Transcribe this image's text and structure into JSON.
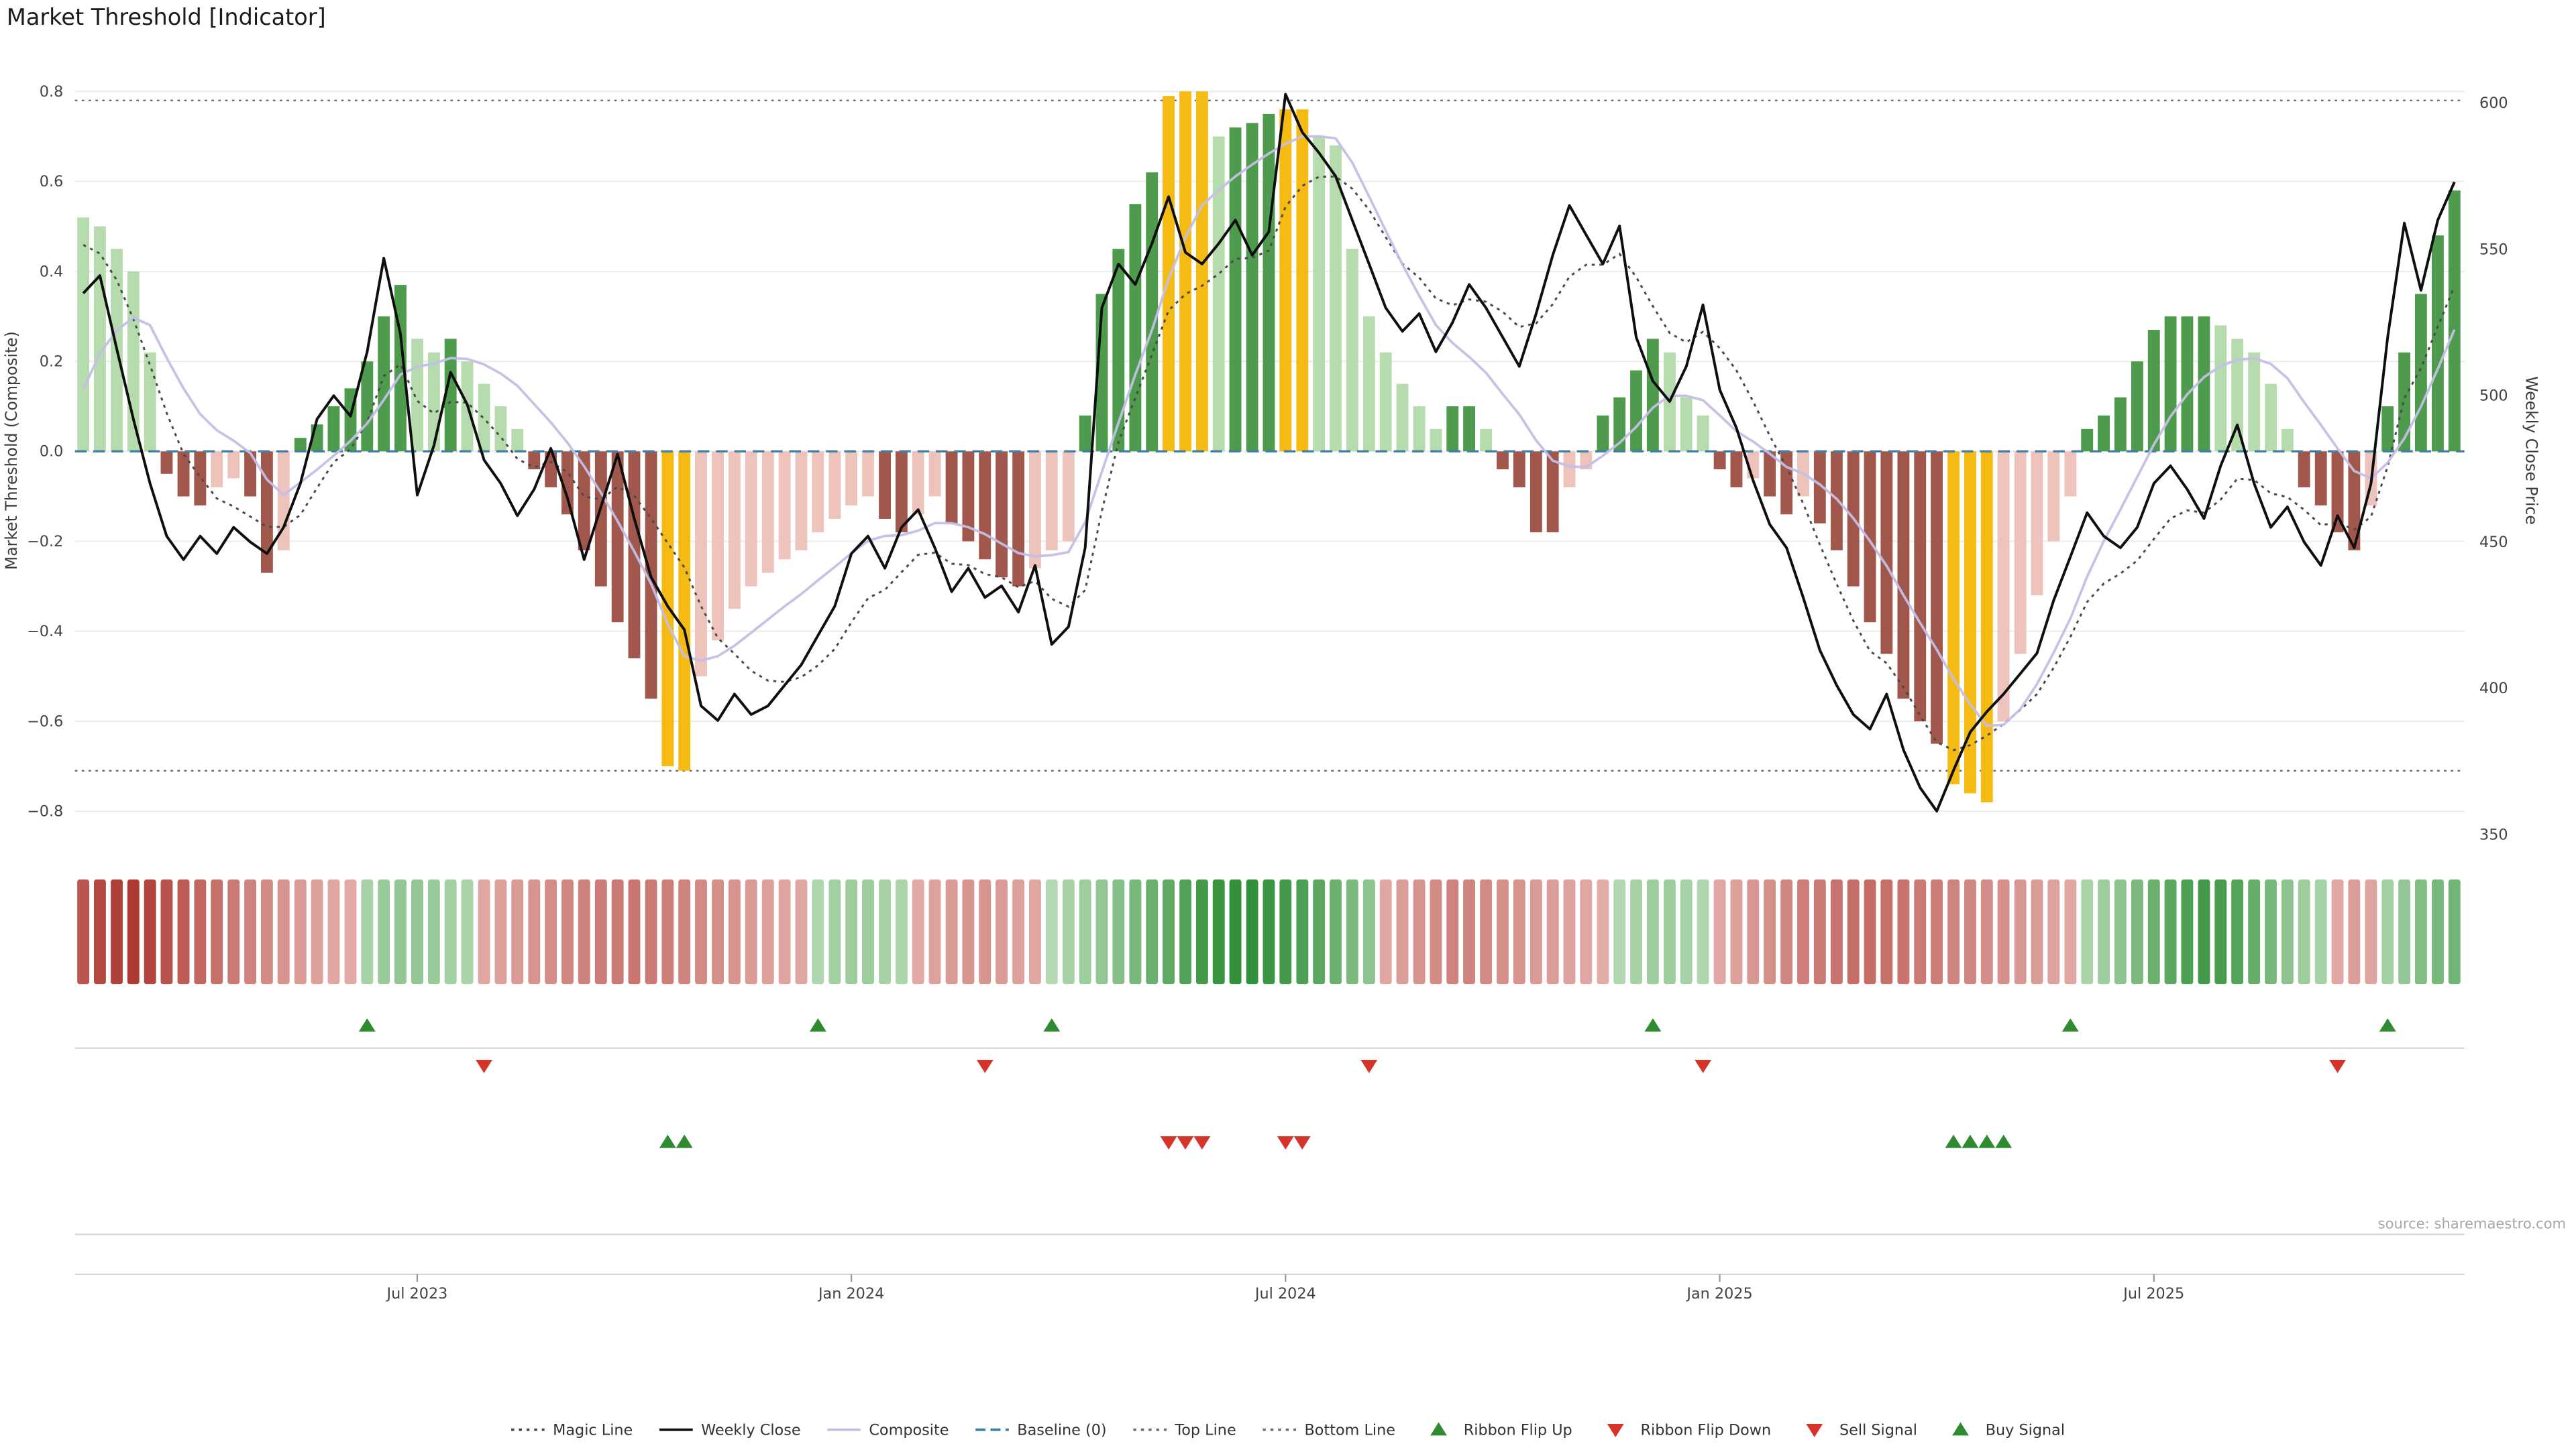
{
  "title": "Market Threshold [Indicator]",
  "source": "source: sharemaestro.com",
  "legend": {
    "items": [
      {
        "label": "Magic Line",
        "glyph": "dotted",
        "color": "#4a4a4a"
      },
      {
        "label": "Weekly Close",
        "glyph": "solid",
        "color": "#0f0f0f"
      },
      {
        "label": "Composite",
        "glyph": "solid",
        "color": "#c3bfe6"
      },
      {
        "label": "Baseline (0)",
        "glyph": "dashed",
        "color": "#3d7fa6"
      },
      {
        "label": "Top Line",
        "glyph": "dotted",
        "color": "#707070"
      },
      {
        "label": "Bottom Line",
        "glyph": "dotted",
        "color": "#707070"
      },
      {
        "label": "Ribbon Flip Up",
        "glyph": "tri-up",
        "color": "#2f8b2f"
      },
      {
        "label": "Ribbon Flip Down",
        "glyph": "tri-down",
        "color": "#d63429"
      },
      {
        "label": "Sell Signal",
        "glyph": "tri-down",
        "color": "#d63429"
      },
      {
        "label": "Buy Signal",
        "glyph": "tri-up",
        "color": "#2f8b2f"
      }
    ]
  },
  "chart_data": {
    "type": "bar",
    "subtype": "weekly composite histogram with overlaid price lines, trend ribbon and signal markers",
    "n_weeks": 143,
    "x_ticks": [
      {
        "week": 20,
        "label": "Jul 2023"
      },
      {
        "week": 46,
        "label": "Jan 2024"
      },
      {
        "week": 72,
        "label": "Jul 2024"
      },
      {
        "week": 98,
        "label": "Jan 2025"
      },
      {
        "week": 124,
        "label": "Jul 2025"
      }
    ],
    "left_axis": {
      "label": "Market Threshold (Composite)",
      "ticks": [
        0.8,
        0.6,
        0.4,
        0.2,
        0,
        -0.2,
        -0.4,
        -0.6,
        -0.8
      ],
      "range": [
        -0.88,
        0.84
      ]
    },
    "right_axis": {
      "label": "Weekly Close Price",
      "ticks": [
        600,
        550,
        500,
        450,
        400,
        350
      ],
      "range": [
        345,
        610
      ]
    },
    "reference_lines": {
      "top_line": 0.78,
      "bottom_line": -0.71,
      "baseline": 0
    },
    "composite_bars": {
      "values": [
        0.52,
        0.5,
        0.45,
        0.4,
        0.22,
        -0.05,
        -0.1,
        -0.12,
        -0.08,
        -0.06,
        -0.1,
        -0.27,
        -0.22,
        0.03,
        0.06,
        0.1,
        0.14,
        0.2,
        0.3,
        0.37,
        0.25,
        0.22,
        0.25,
        0.2,
        0.15,
        0.1,
        0.05,
        -0.04,
        -0.08,
        -0.14,
        -0.22,
        -0.3,
        -0.38,
        -0.46,
        -0.55,
        -0.7,
        -0.71,
        -0.5,
        -0.42,
        -0.35,
        -0.3,
        -0.27,
        -0.24,
        -0.22,
        -0.18,
        -0.15,
        -0.12,
        -0.1,
        -0.15,
        -0.18,
        -0.14,
        -0.1,
        -0.16,
        -0.2,
        -0.24,
        -0.28,
        -0.3,
        -0.26,
        -0.22,
        -0.2,
        0.08,
        0.35,
        0.45,
        0.55,
        0.62,
        0.79,
        0.8,
        0.8,
        0.7,
        0.72,
        0.73,
        0.75,
        0.76,
        0.76,
        0.7,
        0.68,
        0.45,
        0.3,
        0.22,
        0.15,
        0.1,
        0.05,
        0.1,
        0.1,
        0.05,
        -0.04,
        -0.08,
        -0.18,
        -0.18,
        -0.08,
        -0.04,
        0.08,
        0.12,
        0.18,
        0.25,
        0.22,
        0.12,
        0.08,
        -0.04,
        -0.08,
        -0.06,
        -0.1,
        -0.14,
        -0.1,
        -0.16,
        -0.22,
        -0.3,
        -0.38,
        -0.45,
        -0.55,
        -0.6,
        -0.65,
        -0.74,
        -0.76,
        -0.78,
        -0.6,
        -0.45,
        -0.32,
        -0.2,
        -0.1,
        0.05,
        0.08,
        0.12,
        0.2,
        0.27,
        0.3,
        0.3,
        0.3,
        0.28,
        0.25,
        0.22,
        0.15,
        0.05,
        -0.08,
        -0.12,
        -0.18,
        -0.22,
        -0.12,
        0.1,
        0.22,
        0.35,
        0.48,
        0.58
      ],
      "gold_indices": [
        35,
        36,
        65,
        66,
        67,
        72,
        73,
        112,
        113,
        114
      ]
    },
    "weekly_close": {
      "values": [
        535,
        541,
        516,
        492,
        470,
        452,
        444,
        452,
        446,
        455,
        450,
        446,
        455,
        470,
        492,
        500,
        493,
        515,
        547,
        521,
        466,
        483,
        508,
        497,
        478,
        470,
        459,
        468,
        482,
        465,
        444,
        462,
        480,
        458,
        438,
        428,
        420,
        394,
        389,
        398,
        391,
        394,
        401,
        408,
        418,
        428,
        446,
        452,
        441,
        455,
        461,
        448,
        433,
        441,
        431,
        435,
        426,
        442,
        415,
        421,
        448,
        530,
        545,
        538,
        552,
        568,
        549,
        545,
        552,
        560,
        548,
        556,
        603,
        590,
        583,
        575,
        560,
        545,
        530,
        522,
        528,
        515,
        525,
        538,
        530,
        520,
        510,
        528,
        548,
        565,
        555,
        545,
        558,
        520,
        505,
        498,
        510,
        531,
        502,
        489,
        471,
        456,
        448,
        431,
        413,
        401,
        391,
        386,
        398,
        379,
        366,
        358,
        372,
        385,
        392,
        398,
        405,
        412,
        430,
        445,
        460,
        452,
        448,
        455,
        470,
        476,
        468,
        458,
        476,
        490,
        470,
        455,
        462,
        450,
        442,
        459,
        448,
        470,
        520,
        559,
        536,
        560,
        573
      ]
    },
    "derived": {
      "magic_line": {
        "source": "weekly_close",
        "ema_alpha": 0.28,
        "seed": 558
      },
      "composite_line": {
        "source": "composite_bars",
        "ema_alpha": 0.22,
        "seed": 0.03
      }
    },
    "ribbon": {
      "values": [
        -0.8,
        -0.88,
        -0.93,
        -0.97,
        -0.9,
        -0.82,
        -0.76,
        -0.7,
        -0.64,
        -0.58,
        -0.52,
        -0.47,
        -0.42,
        -0.38,
        -0.34,
        -0.3,
        -0.28,
        0.3,
        0.38,
        0.42,
        0.42,
        0.38,
        0.32,
        0.28,
        -0.3,
        -0.34,
        -0.38,
        -0.42,
        -0.46,
        -0.5,
        -0.53,
        -0.56,
        -0.58,
        -0.6,
        -0.58,
        -0.55,
        -0.52,
        -0.48,
        -0.45,
        -0.42,
        -0.38,
        -0.35,
        -0.32,
        -0.3,
        0.25,
        0.32,
        0.36,
        0.36,
        0.3,
        0.26,
        -0.28,
        -0.33,
        -0.38,
        -0.42,
        -0.42,
        -0.38,
        -0.34,
        -0.3,
        0.22,
        0.3,
        0.36,
        0.42,
        0.5,
        0.58,
        0.66,
        0.74,
        0.82,
        0.9,
        0.96,
        1.0,
        1.0,
        0.95,
        0.9,
        0.84,
        0.76,
        0.66,
        0.56,
        0.46,
        -0.3,
        -0.36,
        -0.42,
        -0.47,
        -0.52,
        -0.52,
        -0.48,
        -0.44,
        -0.42,
        -0.38,
        -0.36,
        -0.33,
        -0.3,
        -0.27,
        0.24,
        0.3,
        0.36,
        0.36,
        0.3,
        0.25,
        -0.3,
        -0.35,
        -0.4,
        -0.45,
        -0.5,
        -0.55,
        -0.58,
        -0.62,
        -0.65,
        -0.66,
        -0.64,
        -0.62,
        -0.58,
        -0.56,
        -0.52,
        -0.5,
        -0.46,
        -0.44,
        -0.4,
        -0.37,
        -0.33,
        -0.3,
        0.28,
        0.36,
        0.46,
        0.56,
        0.66,
        0.76,
        0.84,
        0.9,
        0.88,
        0.8,
        0.7,
        0.58,
        0.46,
        0.36,
        0.3,
        -0.3,
        -0.36,
        -0.32,
        0.32,
        0.42,
        0.52,
        0.58,
        0.62
      ]
    },
    "signals": {
      "ribbon_flip_up": [
        17,
        44,
        58,
        94,
        119,
        138
      ],
      "ribbon_flip_down": [
        24,
        54,
        77,
        97,
        135
      ],
      "sell": [
        65,
        66,
        67,
        72,
        73
      ],
      "buy": [
        35,
        36,
        112,
        113,
        114,
        115
      ]
    },
    "colors": {
      "bar_up_strong": "#4e9b4e",
      "bar_up_weak": "#b6dcae",
      "bar_down_strong": "#a2574d",
      "bar_down_weak": "#edc3bb",
      "bar_extreme": "#f5bb13",
      "weekly_close": "#0f0f0f",
      "magic_line": "#4a4a4a",
      "composite_line": "#c3bfe6",
      "baseline": "#3d7fa6",
      "ref_line": "#707070",
      "signal_up": "#2f8b2f",
      "signal_down": "#d63429",
      "ribbon_pos_strong": "#33913b",
      "ribbon_pos_weak": "#d8edd4",
      "ribbon_neg_strong": "#ab352e",
      "ribbon_neg_weak": "#f6d8d4"
    }
  }
}
